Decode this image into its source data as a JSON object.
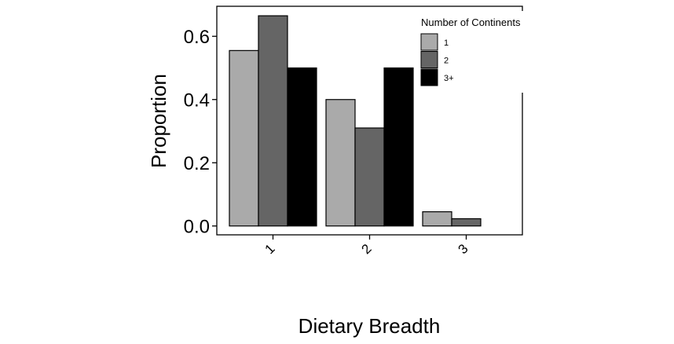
{
  "chart_data": {
    "type": "bar",
    "xlabel": "Dietary Breadth",
    "ylabel": "Proportion",
    "categories": [
      "1",
      "2",
      "3"
    ],
    "ylim": [
      -0.028,
      0.695
    ],
    "yticks": [
      0.0,
      0.2,
      0.4,
      0.6
    ],
    "ytick_labels": [
      "0.0",
      "0.2",
      "0.4",
      "0.6"
    ],
    "grid": false,
    "legend": {
      "title": "Number of Continents",
      "position": "top-right"
    },
    "series": [
      {
        "name": "1",
        "color": "#aaaaaa",
        "values": [
          0.555,
          0.4,
          0.045
        ]
      },
      {
        "name": "2",
        "color": "#656565",
        "values": [
          0.665,
          0.31,
          0.023
        ]
      },
      {
        "name": "3+",
        "color": "#000000",
        "values": [
          0.5,
          0.5,
          0
        ]
      }
    ]
  }
}
